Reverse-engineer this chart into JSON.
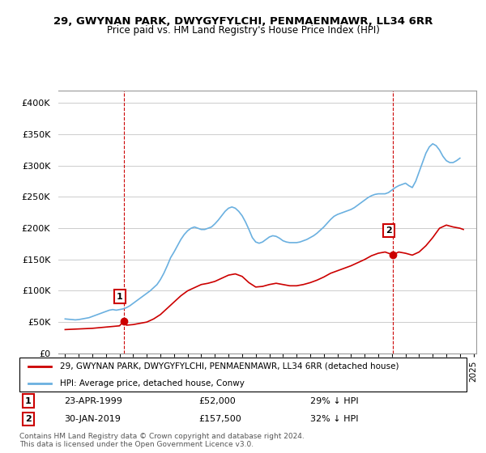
{
  "title": "29, GWYNAN PARK, DWYGYFYLCHI, PENMAENMAWR, LL34 6RR",
  "subtitle": "Price paid vs. HM Land Registry's House Price Index (HPI)",
  "legend_line1": "29, GWYNAN PARK, DWYGYFYLCHI, PENMAENMAWR, LL34 6RR (detached house)",
  "legend_line2": "HPI: Average price, detached house, Conwy",
  "annotation1_label": "1",
  "annotation1_date": "23-APR-1999",
  "annotation1_price": "£52,000",
  "annotation1_hpi": "29% ↓ HPI",
  "annotation2_label": "2",
  "annotation2_date": "30-JAN-2019",
  "annotation2_price": "£157,500",
  "annotation2_hpi": "32% ↓ HPI",
  "footer": "Contains HM Land Registry data © Crown copyright and database right 2024.\nThis data is licensed under the Open Government Licence v3.0.",
  "hpi_color": "#6ab0e0",
  "price_color": "#cc0000",
  "vline_color": "#cc0000",
  "marker1_year": 1999.31,
  "marker1_value": 52000,
  "marker2_year": 2019.08,
  "marker2_value": 157500,
  "ylim": [
    0,
    420000
  ],
  "yticks": [
    0,
    50000,
    100000,
    150000,
    200000,
    250000,
    300000,
    350000,
    400000
  ],
  "hpi_data": {
    "years": [
      1995.0,
      1995.25,
      1995.5,
      1995.75,
      1996.0,
      1996.25,
      1996.5,
      1996.75,
      1997.0,
      1997.25,
      1997.5,
      1997.75,
      1998.0,
      1998.25,
      1998.5,
      1998.75,
      1999.0,
      1999.25,
      1999.5,
      1999.75,
      2000.0,
      2000.25,
      2000.5,
      2000.75,
      2001.0,
      2001.25,
      2001.5,
      2001.75,
      2002.0,
      2002.25,
      2002.5,
      2002.75,
      2003.0,
      2003.25,
      2003.5,
      2003.75,
      2004.0,
      2004.25,
      2004.5,
      2004.75,
      2005.0,
      2005.25,
      2005.5,
      2005.75,
      2006.0,
      2006.25,
      2006.5,
      2006.75,
      2007.0,
      2007.25,
      2007.5,
      2007.75,
      2008.0,
      2008.25,
      2008.5,
      2008.75,
      2009.0,
      2009.25,
      2009.5,
      2009.75,
      2010.0,
      2010.25,
      2010.5,
      2010.75,
      2011.0,
      2011.25,
      2011.5,
      2011.75,
      2012.0,
      2012.25,
      2012.5,
      2012.75,
      2013.0,
      2013.25,
      2013.5,
      2013.75,
      2014.0,
      2014.25,
      2014.5,
      2014.75,
      2015.0,
      2015.25,
      2015.5,
      2015.75,
      2016.0,
      2016.25,
      2016.5,
      2016.75,
      2017.0,
      2017.25,
      2017.5,
      2017.75,
      2018.0,
      2018.25,
      2018.5,
      2018.75,
      2019.0,
      2019.25,
      2019.5,
      2019.75,
      2020.0,
      2020.25,
      2020.5,
      2020.75,
      2021.0,
      2021.25,
      2021.5,
      2021.75,
      2022.0,
      2022.25,
      2022.5,
      2022.75,
      2023.0,
      2023.25,
      2023.5,
      2023.75,
      2024.0
    ],
    "values": [
      55000,
      54500,
      54000,
      53500,
      54000,
      55000,
      56000,
      57000,
      59000,
      61000,
      63000,
      65000,
      67000,
      69000,
      70000,
      69000,
      70000,
      71000,
      73000,
      76000,
      80000,
      84000,
      88000,
      92000,
      96000,
      100000,
      105000,
      110000,
      118000,
      128000,
      140000,
      153000,
      162000,
      172000,
      182000,
      190000,
      196000,
      200000,
      202000,
      200000,
      198000,
      198000,
      200000,
      202000,
      207000,
      213000,
      220000,
      227000,
      232000,
      234000,
      232000,
      227000,
      220000,
      210000,
      198000,
      185000,
      178000,
      176000,
      178000,
      182000,
      186000,
      188000,
      187000,
      184000,
      180000,
      178000,
      177000,
      177000,
      177000,
      178000,
      180000,
      182000,
      185000,
      188000,
      192000,
      197000,
      202000,
      208000,
      214000,
      219000,
      222000,
      224000,
      226000,
      228000,
      230000,
      233000,
      237000,
      241000,
      245000,
      249000,
      252000,
      254000,
      255000,
      255000,
      255000,
      257000,
      261000,
      265000,
      268000,
      270000,
      272000,
      268000,
      265000,
      275000,
      290000,
      305000,
      320000,
      330000,
      335000,
      332000,
      325000,
      315000,
      308000,
      305000,
      305000,
      308000,
      312000
    ]
  },
  "price_data": {
    "years": [
      1995.0,
      1995.5,
      1996.0,
      1996.5,
      1997.0,
      1997.5,
      1998.0,
      1998.5,
      1999.0,
      1999.31,
      1999.5,
      2000.0,
      2000.5,
      2001.0,
      2001.5,
      2002.0,
      2002.5,
      2003.0,
      2003.5,
      2004.0,
      2004.5,
      2005.0,
      2005.5,
      2006.0,
      2006.5,
      2007.0,
      2007.5,
      2008.0,
      2008.5,
      2009.0,
      2009.5,
      2010.0,
      2010.5,
      2011.0,
      2011.5,
      2012.0,
      2012.5,
      2013.0,
      2013.5,
      2014.0,
      2014.5,
      2015.0,
      2015.5,
      2016.0,
      2016.5,
      2017.0,
      2017.5,
      2018.0,
      2018.5,
      2019.08,
      2019.5,
      2020.0,
      2020.5,
      2021.0,
      2021.5,
      2022.0,
      2022.5,
      2023.0,
      2023.5,
      2024.0,
      2024.25
    ],
    "values": [
      38000,
      38500,
      39000,
      39500,
      40000,
      41000,
      42000,
      43000,
      44000,
      52000,
      45000,
      46000,
      48000,
      50000,
      55000,
      62000,
      72000,
      82000,
      92000,
      100000,
      105000,
      110000,
      112000,
      115000,
      120000,
      125000,
      127000,
      123000,
      113000,
      106000,
      107000,
      110000,
      112000,
      110000,
      108000,
      108000,
      110000,
      113000,
      117000,
      122000,
      128000,
      132000,
      136000,
      140000,
      145000,
      150000,
      156000,
      160000,
      162000,
      157500,
      162000,
      160000,
      157000,
      162000,
      172000,
      185000,
      200000,
      205000,
      202000,
      200000,
      198000
    ]
  }
}
